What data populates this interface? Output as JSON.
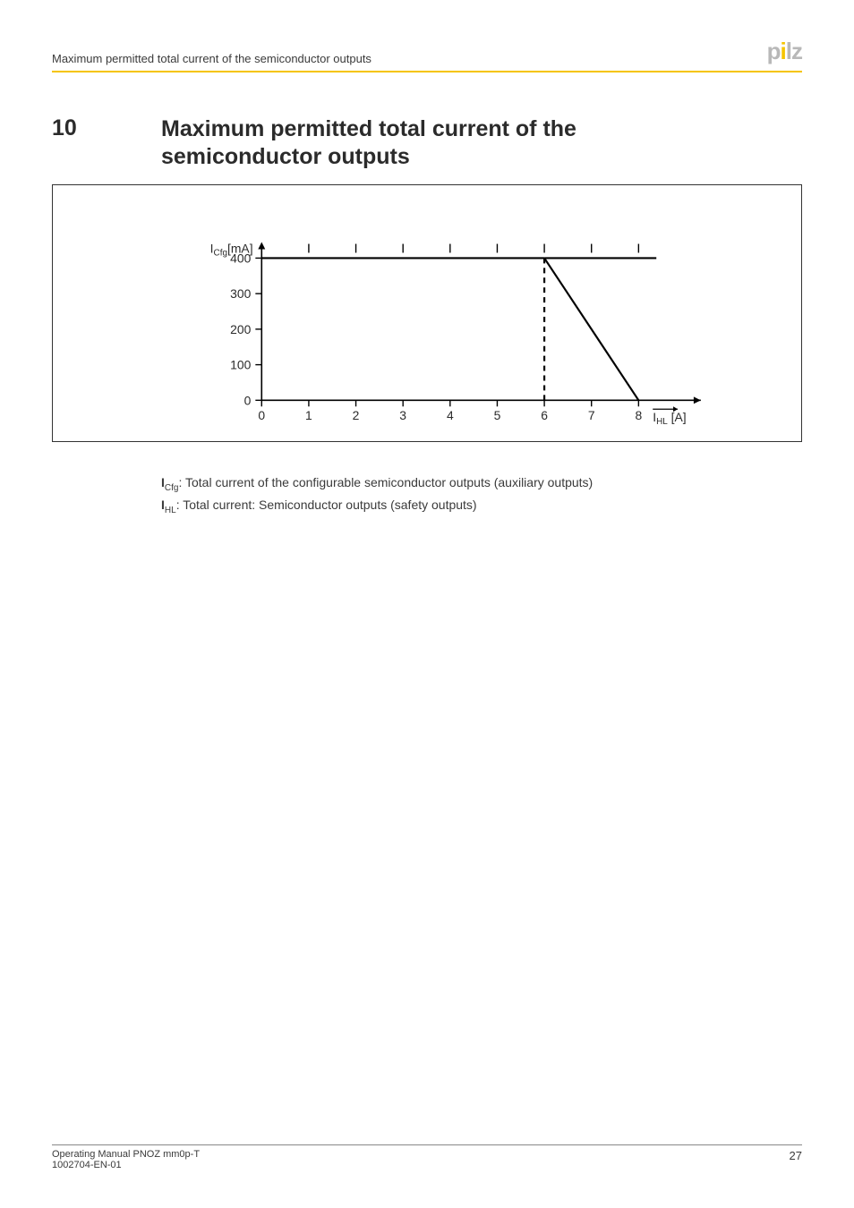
{
  "header": {
    "title": "Maximum permitted total current of the semiconductor outputs",
    "logo_text": "pilz",
    "logo_color_gray": "#b8b8b8",
    "logo_color_accent": "#f5c400"
  },
  "section": {
    "number": "10",
    "title_line1": "Maximum permitted total current of the",
    "title_line2": "semiconductor outputs"
  },
  "chart": {
    "type": "line",
    "border_color": "#333333",
    "plot": {
      "x_origin": 232,
      "y_origin": 242,
      "x_step": 53,
      "y_step": 40,
      "axis_color": "#000000",
      "tick_len": 7
    },
    "y_axis": {
      "label": "ICfg[mA]",
      "label_sub_start": 1,
      "label_sub_end": 4,
      "ticks": [
        0,
        100,
        200,
        300,
        400
      ],
      "fontsize": 14
    },
    "x_axis": {
      "label": "IHL [A]",
      "label_sub_start": 1,
      "label_sub_end": 3,
      "ticks": [
        0,
        1,
        2,
        3,
        4,
        5,
        6,
        7,
        8
      ],
      "fontsize": 14,
      "arrow": true
    },
    "series": [
      {
        "name": "limit-line",
        "points": [
          [
            6,
            400
          ],
          [
            8,
            0
          ]
        ],
        "color": "#000000",
        "width": 2.2,
        "dash": "none"
      },
      {
        "name": "vertical-dashed",
        "points": [
          [
            6,
            0
          ],
          [
            6,
            400
          ]
        ],
        "color": "#000000",
        "width": 2.2,
        "dash": "6,5"
      }
    ]
  },
  "legend": {
    "line1_bold": "I",
    "line1_sub": "Cfg",
    "line1_text": ": Total current of the configurable semiconductor outputs (auxiliary outputs)",
    "line2_bold": "I",
    "line2_sub": "HL",
    "line2_text": ": Total current: Semiconductor outputs (safety outputs)"
  },
  "footer": {
    "left_line1": "Operating Manual PNOZ mm0p-T",
    "left_line2": "1002704-EN-01",
    "page_no": "27"
  }
}
